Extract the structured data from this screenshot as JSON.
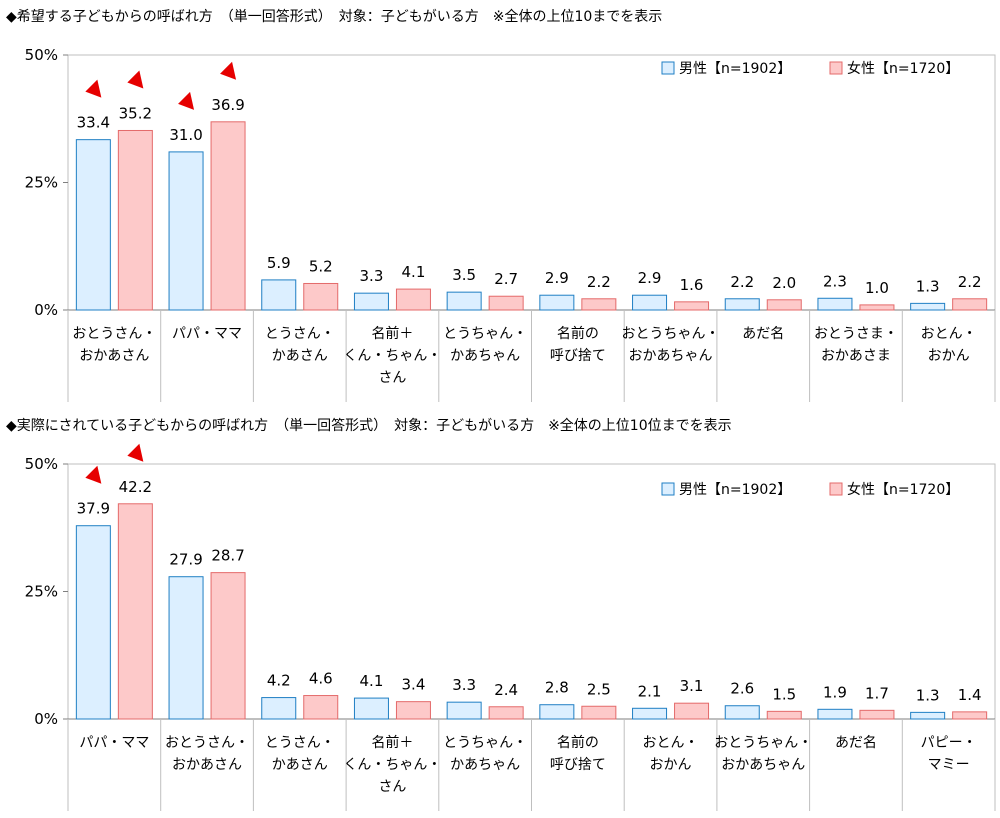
{
  "colors": {
    "male_fill": "#dcefff",
    "male_stroke": "#1f7fc4",
    "female_fill": "#fdc9c9",
    "female_stroke": "#e46a6a",
    "arrow": "#e60000",
    "axis": "#7f7f7f"
  },
  "chart_data": [
    {
      "type": "bar",
      "title": "◆希望する子どもからの呼ばれ方　（単一回答形式）　対象：子どもがいる方　※全体の上位10までを表示",
      "ylim": [
        0,
        50
      ],
      "yticks": [
        "0%",
        "25%",
        "50%"
      ],
      "ytick_values": [
        0,
        25,
        50
      ],
      "grid": false,
      "legend_position": "top-right",
      "categories": [
        [
          "おとうさん・",
          "おかあさん"
        ],
        [
          "パパ・ママ"
        ],
        [
          "とうさん・",
          "かあさん"
        ],
        [
          "名前＋",
          "くん・ちゃん・",
          "さん"
        ],
        [
          "とうちゃん・",
          "かあちゃん"
        ],
        [
          "名前の",
          "呼び捨て"
        ],
        [
          "おとうちゃん・",
          "おかあちゃん"
        ],
        [
          "あだ名"
        ],
        [
          "おとうさま・",
          "おかあさま"
        ],
        [
          "おとん・",
          "おかん"
        ]
      ],
      "series": [
        {
          "name": "男性【n=1902】",
          "values": [
            33.4,
            31.0,
            5.9,
            3.3,
            3.5,
            2.9,
            2.9,
            2.2,
            2.3,
            1.3
          ]
        },
        {
          "name": "女性【n=1720】",
          "values": [
            35.2,
            36.9,
            5.2,
            4.1,
            2.7,
            2.2,
            1.6,
            2.0,
            1.0,
            2.2
          ]
        }
      ],
      "value_labels": [
        [
          "33.4",
          "31.0",
          "5.9",
          "3.3",
          "3.5",
          "2.9",
          "2.9",
          "2.2",
          "2.3",
          "1.3"
        ],
        [
          "35.2",
          "36.9",
          "5.2",
          "4.1",
          "2.7",
          "2.2",
          "1.6",
          "2.0",
          "1.0",
          "2.2"
        ]
      ],
      "highlight_arrows": [
        [
          0,
          0
        ],
        [
          1,
          0
        ],
        [
          0,
          1
        ],
        [
          1,
          1
        ]
      ]
    },
    {
      "type": "bar",
      "title": "◆実際にされている子どもからの呼ばれ方　（単一回答形式）　対象：子どもがいる方　※全体の上位10位までを表示",
      "ylim": [
        0,
        50
      ],
      "yticks": [
        "0%",
        "25%",
        "50%"
      ],
      "ytick_values": [
        0,
        25,
        50
      ],
      "grid": false,
      "legend_position": "top-right",
      "categories": [
        [
          "パパ・ママ"
        ],
        [
          "おとうさん・",
          "おかあさん"
        ],
        [
          "とうさん・",
          "かあさん"
        ],
        [
          "名前＋",
          "くん・ちゃん・",
          "さん"
        ],
        [
          "とうちゃん・",
          "かあちゃん"
        ],
        [
          "名前の",
          "呼び捨て"
        ],
        [
          "おとん・",
          "おかん"
        ],
        [
          "おとうちゃん・",
          "おかあちゃん"
        ],
        [
          "あだ名"
        ],
        [
          "パピー・",
          "マミー"
        ]
      ],
      "series": [
        {
          "name": "男性【n=1902】",
          "values": [
            37.9,
            27.9,
            4.2,
            4.1,
            3.3,
            2.8,
            2.1,
            2.6,
            1.9,
            1.3
          ]
        },
        {
          "name": "女性【n=1720】",
          "values": [
            42.2,
            28.7,
            4.6,
            3.4,
            2.4,
            2.5,
            3.1,
            1.5,
            1.7,
            1.4
          ]
        }
      ],
      "value_labels": [
        [
          "37.9",
          "27.9",
          "4.2",
          "4.1",
          "3.3",
          "2.8",
          "2.1",
          "2.6",
          "1.9",
          "1.3"
        ],
        [
          "42.2",
          "28.7",
          "4.6",
          "3.4",
          "2.4",
          "2.5",
          "3.1",
          "1.5",
          "1.7",
          "1.4"
        ]
      ],
      "highlight_arrows": [
        [
          0,
          0
        ],
        [
          1,
          0
        ]
      ]
    }
  ]
}
